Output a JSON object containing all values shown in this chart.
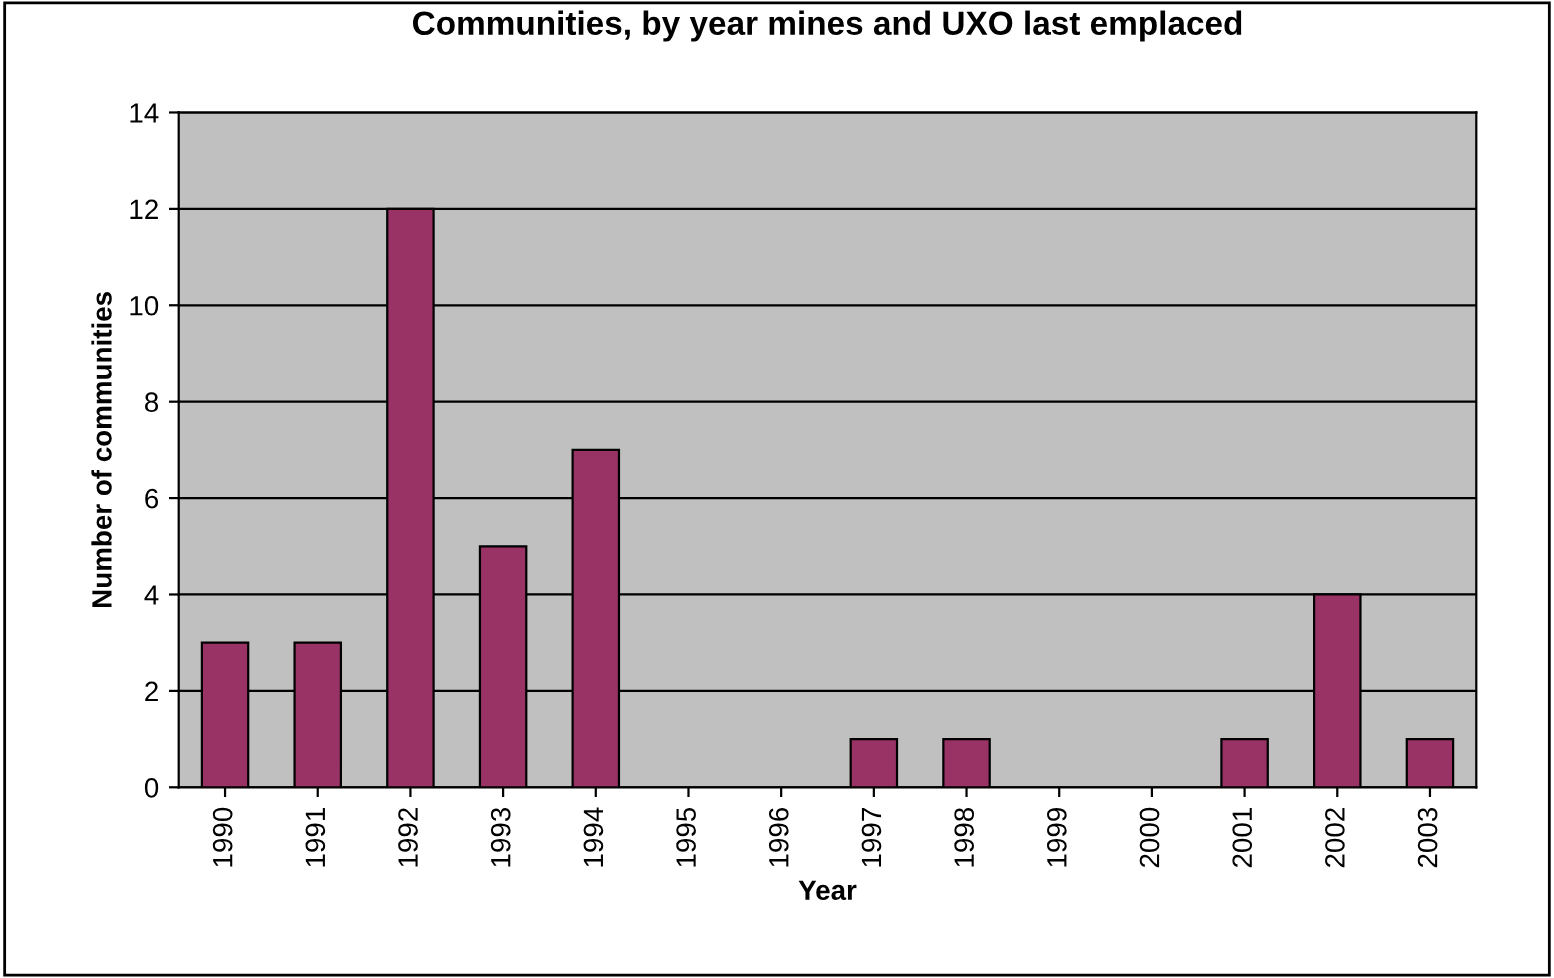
{
  "chart_data": {
    "type": "bar",
    "title": "Communities, by year mines and UXO last emplaced",
    "xlabel": "Year",
    "ylabel": "Number of communities",
    "categories": [
      "1990",
      "1991",
      "1992",
      "1993",
      "1994",
      "1995",
      "1996",
      "1997",
      "1998",
      "1999",
      "2000",
      "2001",
      "2002",
      "2003"
    ],
    "values": [
      3,
      3,
      12,
      5,
      7,
      0,
      0,
      1,
      1,
      0,
      0,
      1,
      4,
      1
    ],
    "color": "#993366",
    "ylim": [
      0,
      14
    ],
    "yticks": [
      0,
      2,
      4,
      6,
      8,
      10,
      12,
      14
    ],
    "grid": "y",
    "legend": false
  }
}
